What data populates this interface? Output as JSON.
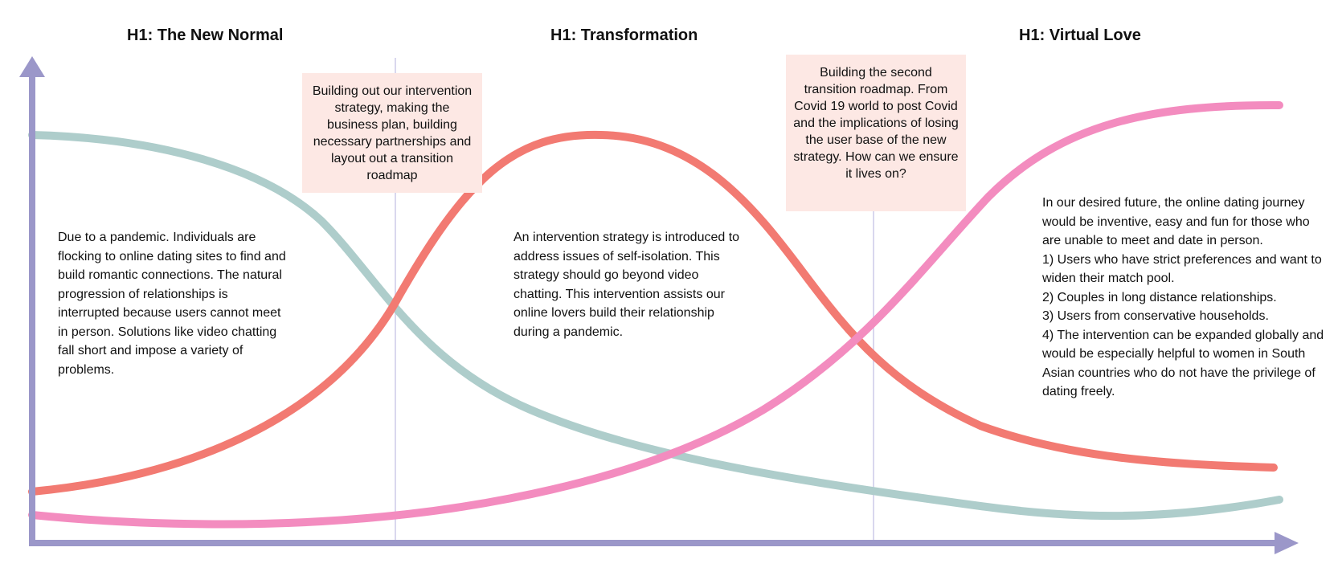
{
  "headings": {
    "new_normal": "H1: The New Normal",
    "transformation": "H1: Transformation",
    "virtual_love": "H1: Virtual Love"
  },
  "notes": {
    "first_roadmap": "Building out our intervention strategy, making the business plan, building necessary partnerships and layout out a transition roadmap",
    "second_roadmap": "Building the second transition roadmap. From Covid 19 world to post Covid and the implications of losing the user base of the new strategy. How can we ensure it lives on?"
  },
  "paragraphs": {
    "new_normal": "Due to a pandemic. Individuals are flocking to online dating sites to find and build romantic connections. The natural progression of relationships is interrupted because users cannot meet in person. Solutions like video chatting fall short and impose a variety of problems.",
    "transformation": "An intervention strategy is introduced to address issues of self-isolation. This strategy should go beyond video chatting. This intervention assists our online lovers build their relationship during a pandemic.",
    "virtual_love": {
      "intro": "In our desired future, the online dating journey would be inventive, easy and fun for those who are unable to meet and date in person.",
      "items": [
        "1) Users who have strict preferences and want to widen their match pool.",
        "2) Couples in long distance relationships.",
        "3) Users from  conservative households.",
        "4) The intervention can be expanded globally and would be especially helpful to women in South Asian countries who do not have the privilege of dating freely."
      ]
    }
  },
  "colors": {
    "axis": "#9b97c9",
    "divider": "#d9d7ee",
    "horizon1_curve": "#aecdcb",
    "horizon2_curve": "#f27a72",
    "horizon3_curve": "#f38cbf",
    "note_background": "#fde8e4"
  }
}
